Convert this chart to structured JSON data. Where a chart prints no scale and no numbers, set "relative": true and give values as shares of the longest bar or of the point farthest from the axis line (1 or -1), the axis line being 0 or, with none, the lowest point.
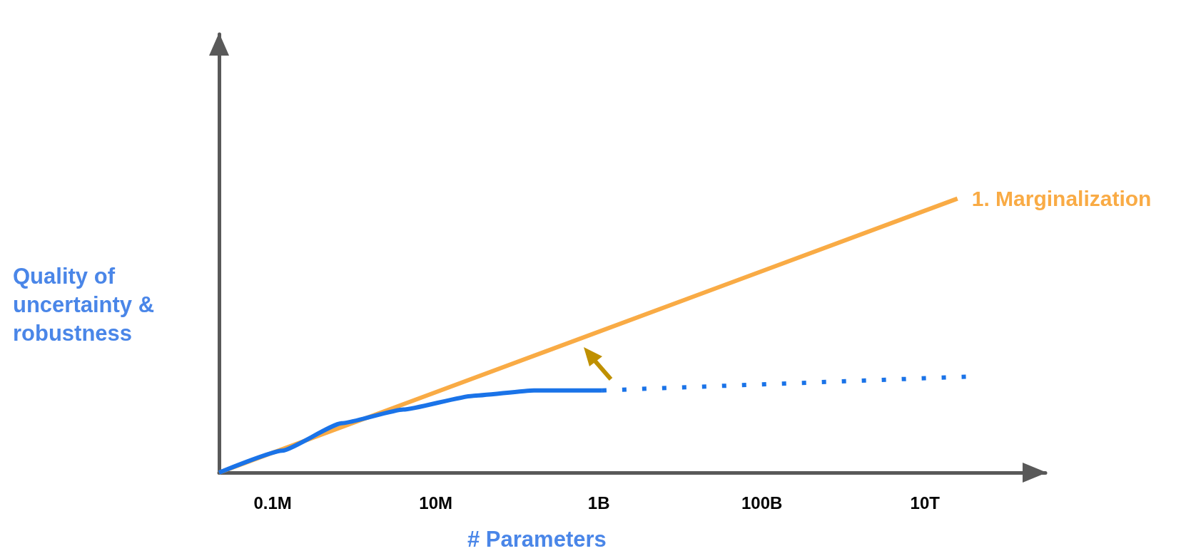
{
  "chart_data": {
    "type": "line",
    "relative": true,
    "log": "x",
    "xlabel": "# Parameters",
    "ylabel": "Quality of uncertainty & robustness",
    "xlim": [
      22000,
      300000000000000
    ],
    "xticks": [
      {
        "value": 100000,
        "label": "0.1M"
      },
      {
        "value": 10000000,
        "label": "10M"
      },
      {
        "value": 1000000000,
        "label": "1B"
      },
      {
        "value": 100000000000,
        "label": "100B"
      },
      {
        "value": 10000000000000,
        "label": "10T"
      }
    ],
    "marker": "none",
    "grid": false,
    "legend": false,
    "series": [
      {
        "name": "1. Marginalization",
        "color": "#f9ab45",
        "x": [
          22000,
          25000000000000
        ],
        "values": [
          0,
          1
        ]
      },
      {
        "color": "#1a73e8",
        "line_style": "solid",
        "x": [
          22000,
          130000,
          700000,
          4000000,
          28000000,
          160000000,
          1100000000
        ],
        "values": [
          0,
          0.08,
          0.18,
          0.23,
          0.28,
          0.3,
          0.3
        ]
      },
      {
        "color": "#1a73e8",
        "line_style": "dotted",
        "x": [
          1100000000,
          32000000000000
        ],
        "values": [
          0.3,
          0.35
        ]
      }
    ]
  }
}
